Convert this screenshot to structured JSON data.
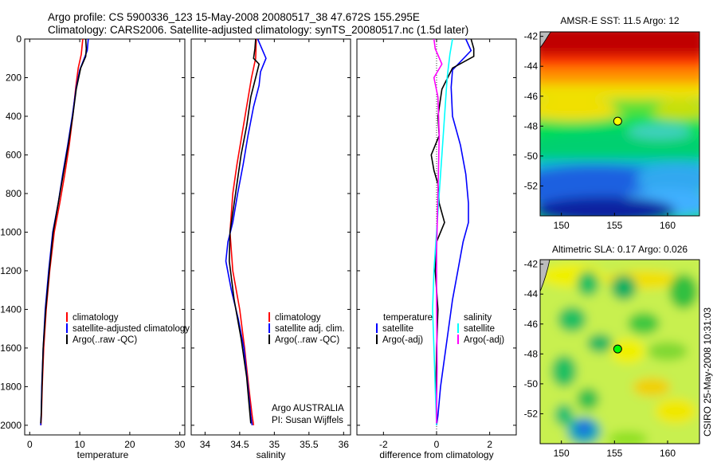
{
  "header": {
    "title_line1": "Argo profile: CS 5900336_123 15-May-2008 20080517_38 47.672S 155.295E",
    "title_line2": "Climatology: CARS2006. Satellite-adjusted climatology: synTS_20080517.nc (1.5d later)"
  },
  "credit": "CSIRO 25-May-2008 10:31:03",
  "chart_data": [
    {
      "type": "line",
      "panel": "temperature",
      "xlabel": "temperature",
      "xlim": [
        -1,
        31
      ],
      "ylim": [
        2050,
        0
      ],
      "y_reversed": true,
      "xticks": [
        "0",
        "10",
        "20",
        "30"
      ],
      "yticks": [
        "0",
        "200",
        "400",
        "600",
        "800",
        "1000",
        "1200",
        "1400",
        "1600",
        "1800",
        "2000"
      ],
      "legend": [
        "climatology",
        "satellite-adjusted climatology",
        "Argo(..raw -QC)"
      ],
      "series": [
        {
          "name": "climatology",
          "color": "#ff0000",
          "x": [
            10.6,
            10.3,
            9.7,
            9.2,
            8.6,
            7.9,
            7.0,
            6.0,
            4.9,
            4.0,
            3.3,
            2.8,
            2.5,
            2.35,
            2.25
          ],
          "y": [
            0,
            80,
            150,
            250,
            400,
            550,
            700,
            850,
            1000,
            1200,
            1400,
            1600,
            1800,
            1950,
            2000
          ]
        },
        {
          "name": "satellite-adjusted climatology",
          "color": "#0000ff",
          "x": [
            11.7,
            11.5,
            10.0,
            9.3,
            8.5,
            7.6,
            6.6,
            5.7,
            4.6,
            3.8,
            3.1,
            2.7,
            2.4,
            2.3,
            2.2
          ],
          "y": [
            0,
            60,
            160,
            250,
            400,
            550,
            700,
            850,
            1000,
            1200,
            1400,
            1600,
            1800,
            1950,
            2000
          ]
        },
        {
          "name": "Argo(..raw -QC)",
          "color": "#000000",
          "x": [
            11.2,
            11.3,
            11.2,
            10.2,
            9.3,
            8.6,
            7.7,
            6.7,
            5.7,
            4.7,
            3.9,
            3.2,
            2.7,
            2.45,
            2.3,
            2.2
          ],
          "y": [
            0,
            50,
            90,
            150,
            260,
            400,
            550,
            700,
            850,
            1000,
            1200,
            1400,
            1600,
            1800,
            1950,
            1990
          ]
        }
      ]
    },
    {
      "type": "line",
      "panel": "salinity",
      "xlabel": "salinity",
      "xlim": [
        33.8,
        36.1
      ],
      "ylim": [
        2050,
        0
      ],
      "y_reversed": true,
      "xticks": [
        "34",
        "34.5",
        "35",
        "35.5",
        "36"
      ],
      "legend": [
        "climatology",
        "satellite adj. clim.",
        "Argo(..raw -QC)"
      ],
      "annotation": [
        "Argo AUSTRALIA",
        "PI: Susan Wijffels"
      ],
      "series": [
        {
          "name": "climatology",
          "color": "#ff0000",
          "x": [
            34.74,
            34.73,
            34.67,
            34.6,
            34.53,
            34.46,
            34.4,
            34.36,
            34.4,
            34.5,
            34.57,
            34.63,
            34.68,
            34.7
          ],
          "y": [
            0,
            100,
            200,
            350,
            500,
            650,
            800,
            1000,
            1200,
            1400,
            1600,
            1800,
            1950,
            2000
          ]
        },
        {
          "name": "satellite adj. clim.",
          "color": "#0000ff",
          "x": [
            34.76,
            34.88,
            34.8,
            34.78,
            34.7,
            34.62,
            34.55,
            34.47,
            34.4,
            34.33,
            34.3,
            34.38,
            34.48,
            34.56,
            34.62,
            34.66,
            34.68
          ],
          "y": [
            0,
            100,
            170,
            240,
            350,
            500,
            650,
            800,
            950,
            1050,
            1150,
            1300,
            1450,
            1600,
            1800,
            1950,
            2000
          ]
        },
        {
          "name": "Argo(..raw -QC)",
          "color": "#000000",
          "x": [
            34.73,
            34.72,
            34.7,
            34.78,
            34.73,
            34.66,
            34.6,
            34.52,
            34.44,
            34.36,
            34.35,
            34.42,
            34.52,
            34.6,
            34.65,
            34.66
          ],
          "y": [
            0,
            50,
            100,
            130,
            200,
            300,
            450,
            600,
            800,
            1000,
            1150,
            1350,
            1550,
            1750,
            1950,
            1990
          ]
        }
      ]
    },
    {
      "type": "line",
      "panel": "difference",
      "xlabel": "difference from climatology",
      "xlim": [
        -3,
        3
      ],
      "ylim": [
        2050,
        0
      ],
      "y_reversed": true,
      "xticks": [
        "-2",
        "0",
        "2"
      ],
      "legend_temperature": [
        "temperature",
        "satellite",
        "Argo(-adj)"
      ],
      "legend_salinity": [
        "salinity",
        "satellite",
        "Argo(-adj)"
      ],
      "series": [
        {
          "name": "temperature satellite",
          "color": "#0000ff",
          "x": [
            1.1,
            1.3,
            0.6,
            0.55,
            0.6,
            0.9,
            1.1,
            1.2,
            1.2,
            1.0,
            0.8,
            0.6,
            0.45,
            0.3,
            0.15,
            0.05,
            0
          ],
          "y": [
            0,
            60,
            160,
            250,
            400,
            550,
            700,
            850,
            950,
            1050,
            1200,
            1350,
            1500,
            1650,
            1800,
            1950,
            2000
          ]
        },
        {
          "name": "temperature Argo(-adj)",
          "color": "#000000",
          "x": [
            1.3,
            1.4,
            1.4,
            0.6,
            0.2,
            0.05,
            0.1,
            -0.2,
            -0.1,
            0.05,
            0.1,
            0.3,
            0.0,
            -0.05,
            0.05,
            0.0,
            -0.02,
            0.0,
            0.0
          ],
          "y": [
            0,
            50,
            90,
            150,
            260,
            400,
            500,
            600,
            680,
            750,
            850,
            950,
            1050,
            1200,
            1400,
            1600,
            1800,
            1950,
            1990
          ]
        },
        {
          "name": "salinity satellite",
          "color": "#00ffff",
          "x": [
            0.6,
            0.5,
            0.4,
            0.3,
            0.2,
            0.1,
            0.0,
            -0.1,
            -0.15,
            -0.1,
            -0.05,
            0.0
          ],
          "y": [
            0,
            80,
            200,
            400,
            600,
            800,
            1000,
            1200,
            1400,
            1600,
            1800,
            2000
          ]
        },
        {
          "name": "salinity Argo(-adj)",
          "color": "#ff00ff",
          "x": [
            -0.1,
            -0.05,
            0.2,
            -0.1,
            0.05,
            0.1,
            0.05,
            0.0,
            0.0,
            0.02,
            0.0,
            0.0
          ],
          "y": [
            0,
            50,
            130,
            200,
            300,
            500,
            800,
            1100,
            1400,
            1700,
            1900,
            1990
          ]
        }
      ]
    },
    {
      "type": "heatmap",
      "panel": "AMSR-E SST",
      "title": "AMSR-E SST: 11.5 Argo: 12",
      "xlim": [
        148,
        163
      ],
      "ylim": [
        -54,
        -41.7
      ],
      "xticks": [
        "150",
        "155",
        "160"
      ],
      "yticks": [
        "-42",
        "-44",
        "-46",
        "-48",
        "-50",
        "-52"
      ],
      "marker": {
        "lon": 155.3,
        "lat": -47.67,
        "color": "#ffff00"
      }
    },
    {
      "type": "heatmap",
      "panel": "Altimetric SLA",
      "title": "Altimetric SLA: 0.17 Argo: 0.026",
      "xlim": [
        148,
        163
      ],
      "ylim": [
        -54,
        -41.7
      ],
      "xticks": [
        "150",
        "155",
        "160"
      ],
      "yticks": [
        "-42",
        "-44",
        "-46",
        "-48",
        "-50",
        "-52"
      ],
      "marker": {
        "lon": 155.3,
        "lat": -47.67,
        "color": "#00ff00"
      }
    }
  ]
}
